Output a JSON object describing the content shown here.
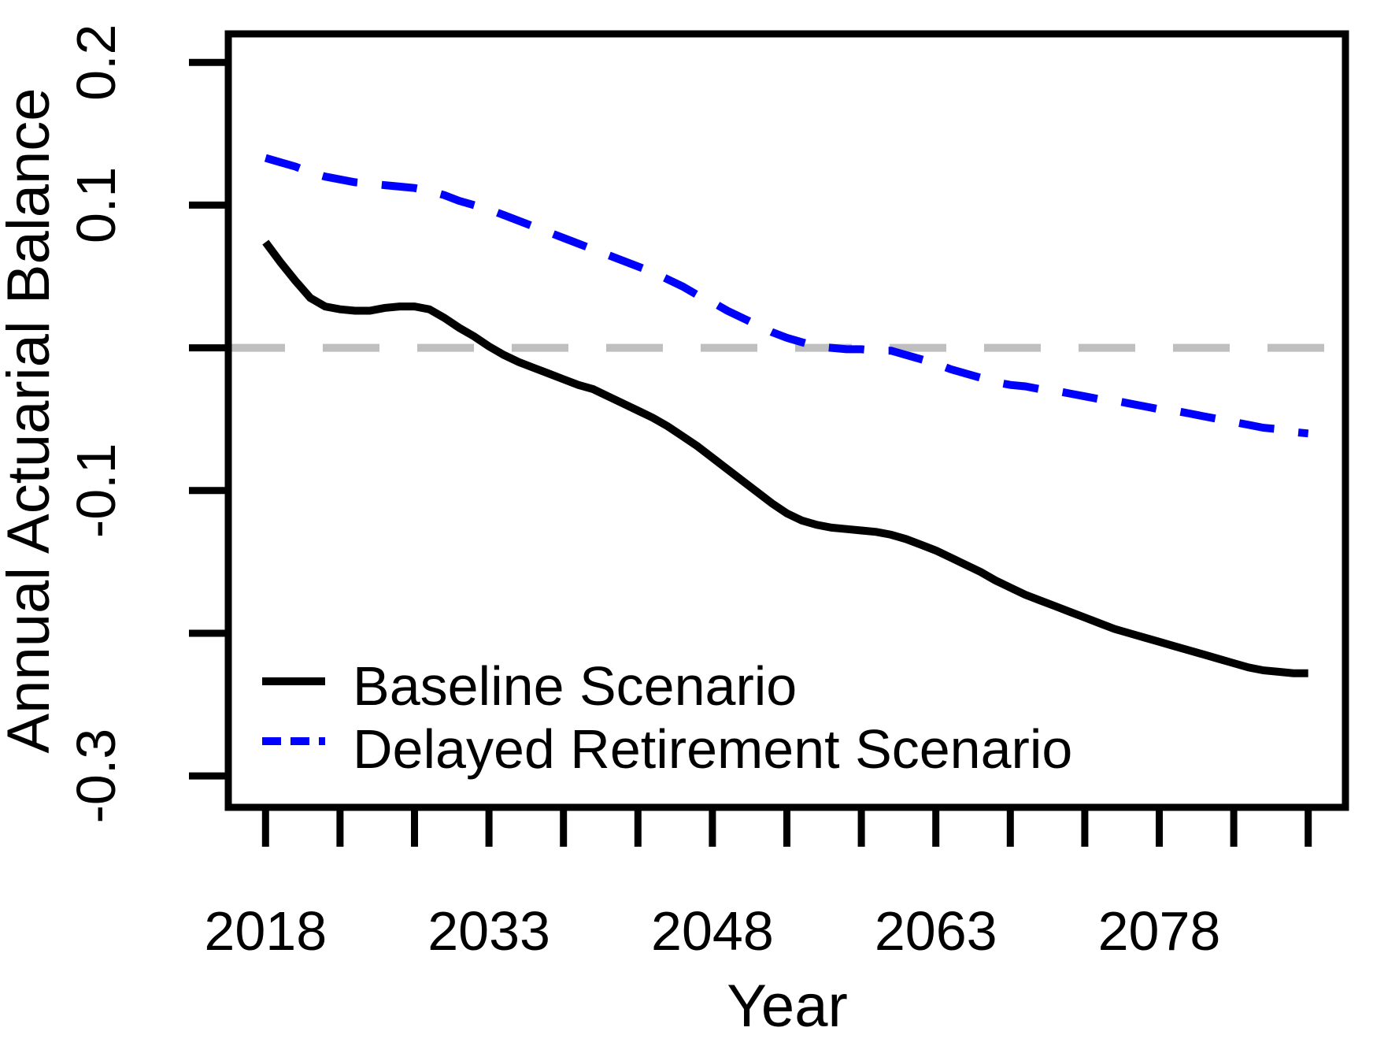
{
  "figure": {
    "background": "#FFFFFF",
    "frame_color": "#000000"
  },
  "colors": {
    "baseline_line": "#000000",
    "delayed_line": "#0000FF",
    "zero_reference": "#BFBFBF",
    "text": "#000000"
  },
  "chart_data": {
    "type": "line",
    "title": "",
    "xlabel": "Year",
    "ylabel": "Annual Actuarial Balance",
    "xlim": [
      2015.5,
      2090.5
    ],
    "ylim": [
      -0.322,
      0.22
    ],
    "grid": false,
    "legend_position": "inside-bottom-left",
    "reference_line": {
      "y": 0,
      "color": "#BFBFBF",
      "style": "dashed"
    },
    "x_ticks": [
      {
        "v": 2018,
        "label": "2018"
      },
      {
        "v": 2023,
        "label": ""
      },
      {
        "v": 2028,
        "label": ""
      },
      {
        "v": 2033,
        "label": "2033"
      },
      {
        "v": 2038,
        "label": ""
      },
      {
        "v": 2043,
        "label": ""
      },
      {
        "v": 2048,
        "label": "2048"
      },
      {
        "v": 2053,
        "label": ""
      },
      {
        "v": 2058,
        "label": ""
      },
      {
        "v": 2063,
        "label": "2063"
      },
      {
        "v": 2068,
        "label": ""
      },
      {
        "v": 2073,
        "label": ""
      },
      {
        "v": 2078,
        "label": "2078"
      },
      {
        "v": 2083,
        "label": ""
      },
      {
        "v": 2088,
        "label": ""
      }
    ],
    "y_ticks": [
      {
        "v": 0.2,
        "label": "0.2"
      },
      {
        "v": 0.1,
        "label": "0.1"
      },
      {
        "v": 0.0,
        "label": ""
      },
      {
        "v": -0.1,
        "label": "-0.1"
      },
      {
        "v": -0.2,
        "label": ""
      },
      {
        "v": -0.3,
        "label": "-0.3"
      }
    ],
    "x": [
      2018,
      2019,
      2020,
      2021,
      2022,
      2023,
      2024,
      2025,
      2026,
      2027,
      2028,
      2029,
      2030,
      2031,
      2032,
      2033,
      2034,
      2035,
      2036,
      2037,
      2038,
      2039,
      2040,
      2041,
      2042,
      2043,
      2044,
      2045,
      2046,
      2047,
      2048,
      2049,
      2050,
      2051,
      2052,
      2053,
      2054,
      2055,
      2056,
      2057,
      2058,
      2059,
      2060,
      2061,
      2062,
      2063,
      2064,
      2065,
      2066,
      2067,
      2068,
      2069,
      2070,
      2071,
      2072,
      2073,
      2074,
      2075,
      2076,
      2077,
      2078,
      2079,
      2080,
      2081,
      2082,
      2083,
      2084,
      2085,
      2086,
      2087,
      2088
    ],
    "series": [
      {
        "name": "Baseline Scenario",
        "color": "#000000",
        "style": "solid",
        "values": [
          0.074,
          0.06,
          0.047,
          0.035,
          0.029,
          0.027,
          0.026,
          0.026,
          0.028,
          0.029,
          0.029,
          0.027,
          0.021,
          0.014,
          0.008,
          0.001,
          -0.005,
          -0.01,
          -0.014,
          -0.018,
          -0.022,
          -0.026,
          -0.029,
          -0.034,
          -0.039,
          -0.044,
          -0.049,
          -0.055,
          -0.062,
          -0.069,
          -0.077,
          -0.085,
          -0.093,
          -0.101,
          -0.109,
          -0.116,
          -0.121,
          -0.124,
          -0.126,
          -0.127,
          -0.128,
          -0.129,
          -0.131,
          -0.134,
          -0.138,
          -0.142,
          -0.147,
          -0.152,
          -0.157,
          -0.163,
          -0.168,
          -0.173,
          -0.177,
          -0.181,
          -0.185,
          -0.189,
          -0.193,
          -0.197,
          -0.2,
          -0.203,
          -0.206,
          -0.209,
          -0.212,
          -0.215,
          -0.218,
          -0.221,
          -0.224,
          -0.226,
          -0.227,
          -0.228,
          -0.228
        ]
      },
      {
        "name": "Delayed Retirement Scenario",
        "color": "#0000FF",
        "style": "dashed",
        "values": [
          0.133,
          0.13,
          0.127,
          0.123,
          0.12,
          0.118,
          0.116,
          0.115,
          0.114,
          0.113,
          0.112,
          0.11,
          0.107,
          0.103,
          0.1,
          0.097,
          0.093,
          0.089,
          0.085,
          0.081,
          0.077,
          0.073,
          0.069,
          0.065,
          0.061,
          0.057,
          0.053,
          0.048,
          0.043,
          0.037,
          0.032,
          0.026,
          0.021,
          0.016,
          0.011,
          0.007,
          0.004,
          0.001,
          0.0,
          -0.001,
          -0.001,
          -0.002,
          -0.002,
          -0.005,
          -0.008,
          -0.011,
          -0.015,
          -0.018,
          -0.021,
          -0.024,
          -0.026,
          -0.027,
          -0.029,
          -0.03,
          -0.032,
          -0.034,
          -0.036,
          -0.037,
          -0.039,
          -0.041,
          -0.043,
          -0.044,
          -0.046,
          -0.048,
          -0.05,
          -0.052,
          -0.054,
          -0.056,
          -0.057,
          -0.059,
          -0.06
        ]
      }
    ]
  }
}
